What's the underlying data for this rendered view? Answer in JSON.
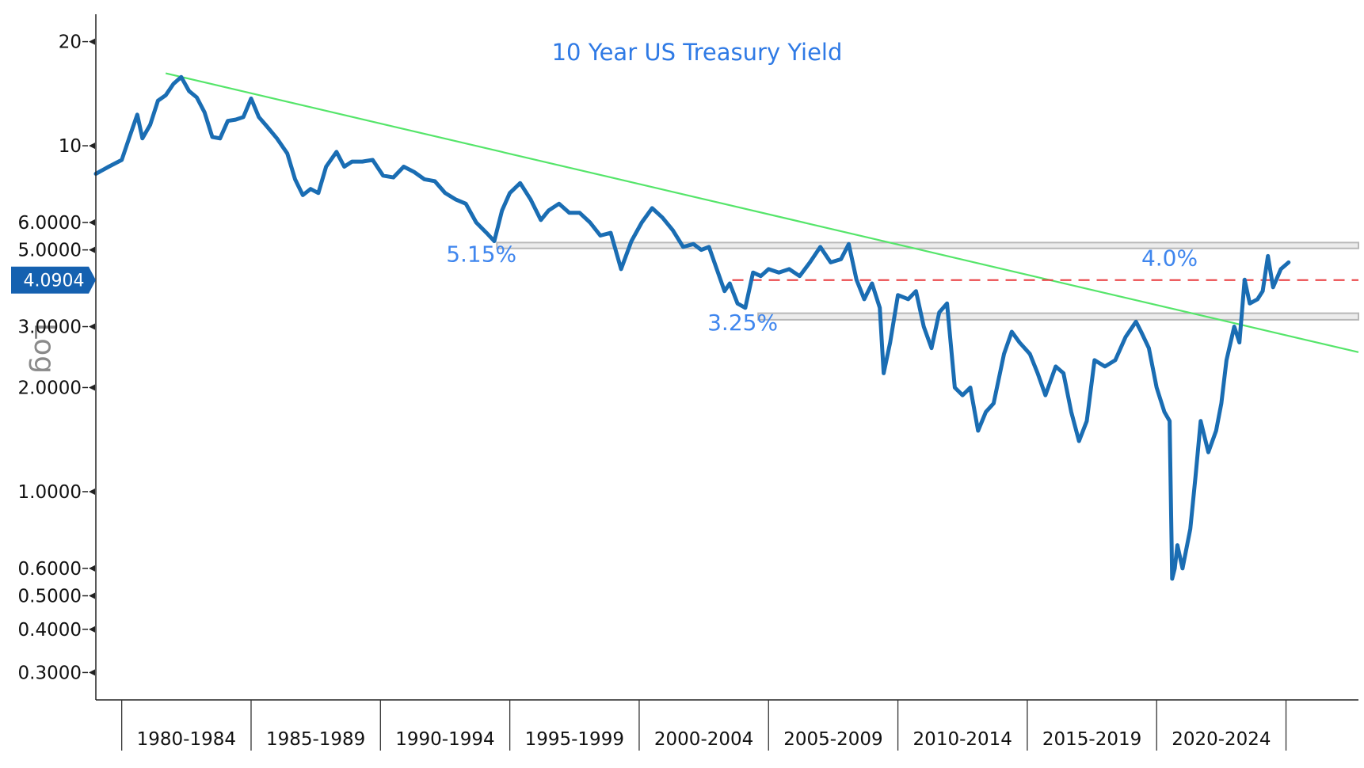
{
  "chart_data": {
    "type": "line",
    "title": "10 Year US Treasury Yield",
    "y_scale_label": "Log",
    "y_scale": "log",
    "ylim": [
      0.25,
      24
    ],
    "xlim": [
      1978.5,
      2027.3
    ],
    "grid": false,
    "y_ticks": [
      {
        "value": 20,
        "label": "20"
      },
      {
        "value": 10,
        "label": "10"
      },
      {
        "value": 6,
        "label": "6.0000"
      },
      {
        "value": 5,
        "label": "5.0000"
      },
      {
        "value": 3,
        "label": "3.0000"
      },
      {
        "value": 2,
        "label": "2.0000"
      },
      {
        "value": 1,
        "label": "1.0000"
      },
      {
        "value": 0.6,
        "label": "0.6000"
      },
      {
        "value": 0.5,
        "label": "0.5000"
      },
      {
        "value": 0.4,
        "label": "0.4000"
      },
      {
        "value": 0.3,
        "label": "0.3000"
      }
    ],
    "x_categories": [
      "1980-1984",
      "1985-1989",
      "1990-1994",
      "1995-1999",
      "2000-2004",
      "2005-2009",
      "2010-2014",
      "2015-2019",
      "2020-2024"
    ],
    "x_boundaries": [
      1979.5,
      1984.5,
      1989.5,
      1994.5,
      1999.5,
      2004.5,
      2009.5,
      2014.5,
      2019.5,
      2024.5
    ],
    "current_value": {
      "value": 4.09,
      "label": "4.0904"
    },
    "series": [
      {
        "color": "#1a6db3",
        "x": [
          1978.5,
          1979.0,
          1979.5,
          1979.8,
          1980.1,
          1980.3,
          1980.6,
          1980.9,
          1981.2,
          1981.5,
          1981.8,
          1982.1,
          1982.4,
          1982.7,
          1983.0,
          1983.3,
          1983.6,
          1983.9,
          1984.2,
          1984.5,
          1984.8,
          1985.1,
          1985.5,
          1985.9,
          1986.2,
          1986.5,
          1986.8,
          1987.1,
          1987.4,
          1987.8,
          1988.1,
          1988.4,
          1988.8,
          1989.2,
          1989.6,
          1990.0,
          1990.4,
          1990.8,
          1991.2,
          1991.6,
          1992.0,
          1992.4,
          1992.8,
          1993.2,
          1993.6,
          1993.9,
          1994.2,
          1994.5,
          1994.9,
          1995.3,
          1995.7,
          1996.0,
          1996.4,
          1996.8,
          1997.2,
          1997.6,
          1998.0,
          1998.4,
          1998.8,
          1999.2,
          1999.6,
          2000.0,
          2000.4,
          2000.8,
          2001.2,
          2001.6,
          2001.9,
          2002.2,
          2002.5,
          2002.8,
          2003.0,
          2003.3,
          2003.6,
          2003.9,
          2004.2,
          2004.5,
          2004.9,
          2005.3,
          2005.7,
          2006.1,
          2006.5,
          2006.9,
          2007.3,
          2007.6,
          2007.9,
          2008.2,
          2008.5,
          2008.8,
          2008.95,
          2009.2,
          2009.5,
          2009.9,
          2010.2,
          2010.5,
          2010.8,
          2011.1,
          2011.4,
          2011.7,
          2012.0,
          2012.3,
          2012.6,
          2012.9,
          2013.2,
          2013.6,
          2013.9,
          2014.2,
          2014.6,
          2014.9,
          2015.2,
          2015.6,
          2015.9,
          2016.2,
          2016.5,
          2016.8,
          2017.1,
          2017.5,
          2017.9,
          2018.3,
          2018.7,
          2018.9,
          2019.2,
          2019.5,
          2019.8,
          2020.0,
          2020.1,
          2020.2,
          2020.3,
          2020.5,
          2020.8,
          2021.0,
          2021.2,
          2021.5,
          2021.8,
          2022.0,
          2022.2,
          2022.5,
          2022.7,
          2022.9,
          2023.1,
          2023.4,
          2023.6,
          2023.8,
          2024.0,
          2024.3,
          2024.6
        ],
        "y": [
          8.3,
          8.7,
          9.1,
          10.6,
          12.3,
          10.5,
          11.5,
          13.5,
          14.0,
          15.1,
          15.8,
          14.4,
          13.8,
          12.5,
          10.6,
          10.5,
          11.8,
          11.9,
          12.1,
          13.7,
          12.1,
          11.4,
          10.5,
          9.5,
          8.0,
          7.2,
          7.5,
          7.3,
          8.7,
          9.6,
          8.7,
          9.0,
          9.0,
          9.1,
          8.2,
          8.1,
          8.7,
          8.4,
          8.0,
          7.9,
          7.3,
          7.0,
          6.8,
          6.0,
          5.6,
          5.3,
          6.5,
          7.3,
          7.8,
          7.0,
          6.1,
          6.5,
          6.8,
          6.4,
          6.4,
          6.0,
          5.5,
          5.6,
          4.4,
          5.3,
          6.0,
          6.6,
          6.2,
          5.7,
          5.1,
          5.2,
          5.0,
          5.1,
          4.4,
          3.8,
          4.0,
          3.5,
          3.4,
          4.3,
          4.2,
          4.4,
          4.3,
          4.4,
          4.2,
          4.6,
          5.1,
          4.6,
          4.7,
          5.2,
          4.1,
          3.6,
          4.0,
          3.4,
          2.2,
          2.7,
          3.7,
          3.6,
          3.8,
          3.0,
          2.6,
          3.3,
          3.5,
          2.0,
          1.9,
          2.0,
          1.5,
          1.7,
          1.8,
          2.5,
          2.9,
          2.7,
          2.5,
          2.2,
          1.9,
          2.3,
          2.2,
          1.7,
          1.4,
          1.6,
          2.4,
          2.3,
          2.4,
          2.8,
          3.1,
          2.9,
          2.6,
          2.0,
          1.7,
          1.6,
          0.56,
          0.6,
          0.7,
          0.6,
          0.78,
          1.1,
          1.6,
          1.3,
          1.5,
          1.8,
          2.4,
          3.0,
          2.7,
          4.1,
          3.5,
          3.6,
          3.8,
          4.8,
          3.9,
          4.4,
          4.6
        ]
      }
    ],
    "annotations": [
      {
        "text": "5.15%",
        "x": 1993.4,
        "y": 4.62
      },
      {
        "text": "3.25%",
        "x": 2003.5,
        "y": 2.93
      },
      {
        "text": "4.0%",
        "x": 2020.0,
        "y": 4.5
      }
    ],
    "support_bands": [
      {
        "x0": 1994.0,
        "x1": 2027.3,
        "y_top": 5.25,
        "y_bottom": 5.05,
        "color": "#b8b8b8"
      },
      {
        "x0": 2004.1,
        "x1": 2027.3,
        "y_top": 3.28,
        "y_bottom": 3.14,
        "color": "#b8b8b8"
      }
    ],
    "trendline": {
      "x0": 1981.2,
      "y0": 16.2,
      "x1": 2027.3,
      "y1": 2.53,
      "color": "#55e56a"
    },
    "horizontal_dashed": {
      "x0": 2003.1,
      "x1": 2027.3,
      "y": 4.09,
      "color": "#e8393c"
    }
  }
}
